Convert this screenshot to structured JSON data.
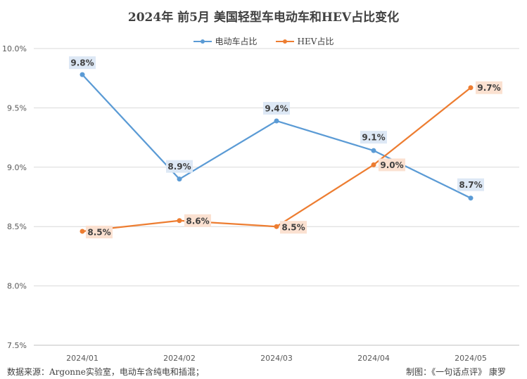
{
  "chart_data": {
    "type": "line",
    "title": "2024年 前5月 美国轻型车电动车和HEV占比变化",
    "categories": [
      "2024/01",
      "2024/02",
      "2024/03",
      "2024/04",
      "2024/05"
    ],
    "series": [
      {
        "name": "电动车占比",
        "values": [
          9.78,
          8.9,
          9.39,
          9.14,
          8.74
        ],
        "labels": [
          "9.8%",
          "8.9%",
          "9.4%",
          "9.1%",
          "8.7%"
        ],
        "color": "#5b9bd5"
      },
      {
        "name": "HEV占比",
        "values": [
          8.46,
          8.55,
          8.5,
          9.02,
          9.67
        ],
        "labels": [
          "8.5%",
          "8.6%",
          "8.5%",
          "9.0%",
          "9.7%"
        ],
        "color": "#ed7d31"
      }
    ],
    "y_ticks": [
      "10.0%",
      "9.5%",
      "9.0%",
      "8.5%",
      "8.0%",
      "7.5%"
    ],
    "ylim": [
      7.5,
      10.0
    ],
    "grid": "horizontal",
    "legend_position": "top-center"
  },
  "footer": {
    "source": "数据来源：Argonne实验室，电动车含纯电和插混；",
    "credit": "制图：《一句话点评》 康罗"
  }
}
